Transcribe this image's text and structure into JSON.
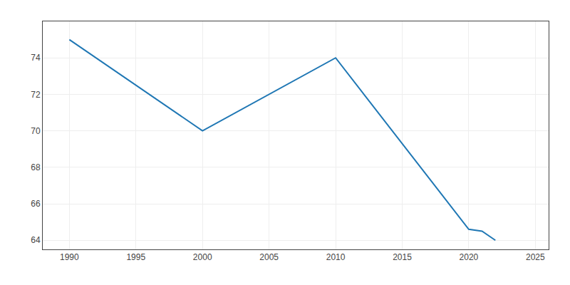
{
  "chart_data": {
    "type": "line",
    "x": [
      1990,
      2000,
      2010,
      2020,
      2021,
      2022
    ],
    "values": [
      75,
      70,
      74,
      64.6,
      64.5,
      64
    ],
    "xlim": [
      1988,
      2026
    ],
    "ylim": [
      63.5,
      76
    ],
    "xticks": [
      1990,
      1995,
      2000,
      2005,
      2010,
      2015,
      2020,
      2025
    ],
    "yticks": [
      64,
      66,
      68,
      70,
      72,
      74
    ],
    "grid": true
  }
}
